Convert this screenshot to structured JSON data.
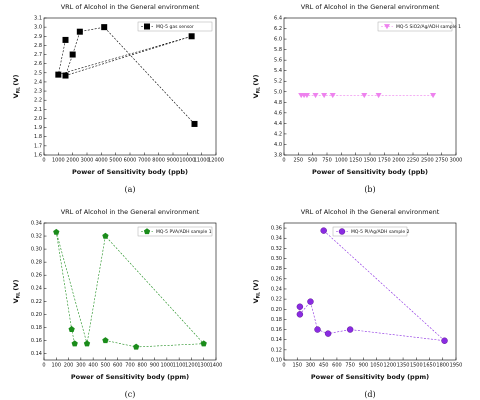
{
  "chart_data": [
    {
      "type": "line",
      "caption": "(a)",
      "title": "VRL of Alcohol in the General environment",
      "xlabel": "Power of Sensitivity body (ppb)",
      "ylabel": {
        "text": "V",
        "sub": "RL",
        "unit": "(V)"
      },
      "x": [
        1500,
        1000,
        10300,
        1500,
        2000,
        2500,
        4200,
        10500
      ],
      "series": [
        {
          "name": "MQ-5 gas sensor",
          "color": "#000000",
          "marker": "square",
          "values": [
            2.86,
            2.48,
            2.9,
            2.47,
            2.7,
            2.95,
            3.0,
            1.94
          ]
        }
      ],
      "xlim": [
        0,
        12000
      ],
      "xticks": [
        0,
        1000,
        2000,
        3000,
        4000,
        5000,
        6000,
        7000,
        8000,
        9000,
        10000,
        11000,
        12000
      ],
      "ylim": [
        1.6,
        3.1
      ],
      "yticks": [
        1.6,
        1.7,
        1.8,
        1.9,
        {
          "value": 2,
          "label": "2.0"
        },
        2.1,
        2.2,
        2.3,
        2.4,
        2.5,
        2.6,
        2.7,
        2.8,
        2.9,
        {
          "value": 3,
          "label": "3.0"
        },
        3.1
      ],
      "legend": "upper right"
    },
    {
      "type": "line",
      "caption": "(b)",
      "title": "VRL of Alcohol in the General environment",
      "xlabel": "Power of Sensitivity body (ppb)",
      "ylabel": {
        "text": "V",
        "sub": "RL",
        "unit": "(V)"
      },
      "x": [
        300,
        350,
        400,
        550,
        700,
        850,
        1400,
        1650,
        2600
      ],
      "series": [
        {
          "name": "MQ-5 SiO2/Ag/ADH sample 1",
          "color": "#ee82ee",
          "marker": "triangle-down",
          "values": [
            4.93,
            4.93,
            4.93,
            4.93,
            4.93,
            4.93,
            4.93,
            4.93,
            4.93
          ]
        }
      ],
      "xlim": [
        0,
        3000
      ],
      "xticks": [
        0,
        250,
        500,
        750,
        1000,
        1250,
        1500,
        1750,
        2000,
        2250,
        2500,
        2750,
        3000
      ],
      "ylim": [
        3.8,
        6.4
      ],
      "yticks": [
        3.8,
        {
          "value": 4,
          "label": "4.0"
        },
        4.2,
        4.4,
        4.6,
        4.8,
        {
          "value": 5,
          "label": "5.0"
        },
        5.2,
        5.4,
        5.6,
        5.8,
        {
          "value": 6,
          "label": "6.0"
        },
        6.2,
        6.4
      ],
      "legend": "upper right"
    },
    {
      "type": "line",
      "caption": "(c)",
      "title": "VRL of Alcohol in the General environment",
      "xlabel": "Power of Sensitivity body (ppm)",
      "ylabel": {
        "text": "V",
        "sub": "RL",
        "unit": "(V)"
      },
      "x": [
        250,
        225,
        100,
        350,
        500,
        1300,
        750,
        500
      ],
      "series": [
        {
          "name": "MQ-5 PVA/ADH sample 1",
          "color": "#1a8c1a",
          "marker": "pentagon",
          "values": [
            0.155,
            0.177,
            0.326,
            0.155,
            0.32,
            0.155,
            0.15,
            0.16
          ]
        }
      ],
      "xlim": [
        0,
        1400
      ],
      "xticks": [
        0,
        100,
        200,
        300,
        400,
        500,
        600,
        700,
        800,
        900,
        1000,
        1100,
        1200,
        1300,
        1400
      ],
      "ylim": [
        0.13,
        0.34
      ],
      "yticks": [
        0.14,
        0.16,
        0.18,
        {
          "value": 0.2,
          "label": "0.20"
        },
        0.22,
        0.24,
        0.26,
        0.28,
        {
          "value": 0.3,
          "label": "0.30"
        },
        0.32,
        0.34
      ],
      "legend": "upper right"
    },
    {
      "type": "line",
      "caption": "(d)",
      "title": "VRL of Alcohol ih the General environment",
      "xlabel": "Power of Sensitivity body (ppm)",
      "ylabel": {
        "text": "V",
        "sub": "RL",
        "unit": "(V)"
      },
      "x": [
        180,
        180,
        300,
        380,
        500,
        750,
        1820,
        450
      ],
      "series": [
        {
          "name": "MQ-5 PI/Ag/ADH sample 2",
          "color": "#8a2be2",
          "marker": "circle",
          "values": [
            0.205,
            0.19,
            0.215,
            0.16,
            0.152,
            0.16,
            0.138,
            0.355
          ]
        }
      ],
      "xlim": [
        0,
        1950
      ],
      "xticks": [
        0,
        150,
        300,
        450,
        600,
        750,
        900,
        1050,
        1200,
        1350,
        1500,
        1650,
        1800,
        1950
      ],
      "ylim": [
        0.1,
        0.37
      ],
      "yticks": [
        {
          "value": 0.1,
          "label": "0.10"
        },
        0.12,
        0.14,
        0.16,
        0.18,
        {
          "value": 0.2,
          "label": "0.20"
        },
        0.22,
        0.24,
        0.26,
        0.28,
        {
          "value": 0.3,
          "label": "0.30"
        },
        0.32,
        0.34,
        0.36
      ],
      "legend": "upper center"
    }
  ]
}
